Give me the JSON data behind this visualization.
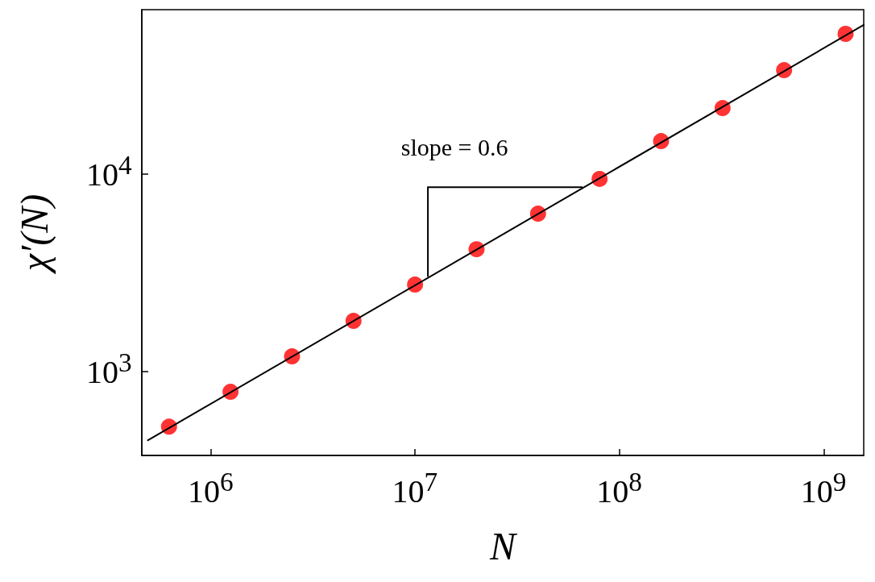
{
  "chart_data": {
    "type": "scatter",
    "xlabel": "N",
    "ylabel": "χ′(N)",
    "log": "xy",
    "xlim": [
      460000,
      1570000000
    ],
    "ylim": [
      377,
      68000
    ],
    "xticks": [
      {
        "value": 1000000,
        "label": "10$^{6}$"
      },
      {
        "value": 10000000,
        "label": "10$^{7}$"
      },
      {
        "value": 100000000,
        "label": "10$^{8}$"
      },
      {
        "value": 1000000000,
        "label": "10$^{9}$"
      }
    ],
    "yticks": [
      {
        "value": 1000,
        "label": "10$^{3}$"
      },
      {
        "value": 10000,
        "label": "10$^{4}$"
      }
    ],
    "marker": "circle",
    "grid": false,
    "annotations": [
      {
        "text": "slope = 0.6",
        "x": 11560000,
        "y": 3030
      }
    ],
    "series": [
      {
        "color": "#ff0000",
        "x": [
          625000,
          1250000,
          2500000,
          5000000,
          10000000,
          20000000,
          40000000,
          80000000,
          160000000,
          320000000,
          640000000,
          1280000000
        ],
        "values": [
          527,
          791,
          1196,
          1808,
          2760,
          4170,
          6310,
          9460,
          14700,
          21600,
          33600,
          51300
        ]
      },
      {
        "type": "line",
        "color": "#000000",
        "marker": "none",
        "line_style": "solid",
        "x": [
          493000,
          1570000000
        ],
        "values": [
          450,
          56900
        ]
      }
    ]
  }
}
